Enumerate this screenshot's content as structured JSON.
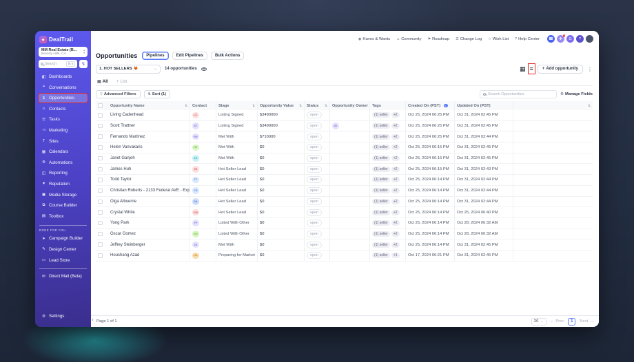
{
  "annotations": {
    "color": "#e02424"
  },
  "topbar": {
    "links": [
      {
        "label": "Haves & Wants",
        "icon": "haves-wants-icon",
        "glyph": "◉"
      },
      {
        "label": "Community",
        "icon": "community-icon",
        "glyph": "☺"
      },
      {
        "label": "Roadmap",
        "icon": "roadmap-icon",
        "glyph": "⚑"
      },
      {
        "label": "Change Log",
        "icon": "change-log-icon",
        "glyph": "☰"
      },
      {
        "label": "Wish List",
        "icon": "wish-list-icon",
        "glyph": "☆"
      },
      {
        "label": "Help Center",
        "icon": "help-center-icon",
        "glyph": "?"
      }
    ],
    "circles": [
      {
        "name": "phone-button",
        "glyph": "☎",
        "bg": "#4a63f2",
        "badge": ""
      },
      {
        "name": "launchpad-button",
        "glyph": "❖",
        "bg": "#9a8bf2",
        "badge": "yes"
      },
      {
        "name": "notifications-bell-button",
        "glyph": "Ω",
        "bg": "#7d6ef0",
        "badge": ""
      },
      {
        "name": "help-button",
        "glyph": "?",
        "bg": "#5a50cc",
        "badge": ""
      },
      {
        "name": "profile-avatar",
        "glyph": "",
        "bg": "#49536a",
        "badge": ""
      }
    ]
  },
  "sidebar": {
    "logo": "DealTrail",
    "logo_glyph": "◆",
    "workspace": {
      "name": "MM Real Estate (B...",
      "location": "Beverly Hills, CA",
      "up_glyph": "▴",
      "down_glyph": "▾"
    },
    "search": {
      "placeholder": "Search",
      "shortcut": "⌘ K",
      "bolt_glyph": "↯"
    },
    "items": [
      {
        "label": "Dashboards",
        "icon": "dashboards-icon",
        "glyph": "◧",
        "active": "",
        "annotated": ""
      },
      {
        "label": "Conversations",
        "icon": "conversations-icon",
        "glyph": "❝",
        "active": "",
        "annotated": ""
      },
      {
        "label": "Opportunities",
        "icon": "opportunities-icon",
        "glyph": "$",
        "active": "yes",
        "annotated": "yes"
      },
      {
        "label": "Contacts",
        "icon": "contacts-icon",
        "glyph": "☺",
        "active": "",
        "annotated": ""
      },
      {
        "label": "Tasks",
        "icon": "tasks-icon",
        "glyph": "☰",
        "active": "",
        "annotated": ""
      },
      {
        "label": "Marketing",
        "icon": "marketing-icon",
        "glyph": "◅",
        "active": "",
        "annotated": ""
      },
      {
        "label": "Sites",
        "icon": "sites-icon",
        "glyph": "T",
        "active": "",
        "annotated": ""
      },
      {
        "label": "Calendars",
        "icon": "calendars-icon",
        "glyph": "▦",
        "active": "",
        "annotated": ""
      },
      {
        "label": "Automations",
        "icon": "automations-icon",
        "glyph": "⚙",
        "active": "",
        "annotated": ""
      },
      {
        "label": "Reporting",
        "icon": "reporting-icon",
        "glyph": "◫",
        "active": "",
        "annotated": ""
      },
      {
        "label": "Reputation",
        "icon": "reputation-icon",
        "glyph": "♥",
        "active": "",
        "annotated": ""
      },
      {
        "label": "Media Storage",
        "icon": "media-storage-icon",
        "glyph": "▣",
        "active": "",
        "annotated": ""
      },
      {
        "label": "Course Builder",
        "icon": "course-builder-icon",
        "glyph": "⧉",
        "active": "",
        "annotated": ""
      },
      {
        "label": "Toolbox",
        "icon": "toolbox-icon",
        "glyph": "▤",
        "active": "",
        "annotated": ""
      }
    ],
    "done_for_you_label": "DONE FOR YOU",
    "dfy_items": [
      {
        "label": "Campaign Builder",
        "icon": "campaign-builder-icon",
        "glyph": "➤"
      },
      {
        "label": "Design Center",
        "icon": "design-center-icon",
        "glyph": "✎"
      },
      {
        "label": "Lead Store",
        "icon": "lead-store-icon",
        "glyph": "▭"
      }
    ],
    "direct_mail": {
      "label": "Direct Mail (Beta)",
      "glyph": "✉"
    },
    "settings": {
      "label": "Settings",
      "glyph": "⚙"
    }
  },
  "header": {
    "title": "Opportunities",
    "tabs": [
      {
        "label": "Pipelines",
        "active": "yes"
      },
      {
        "label": "Edit Pipelines",
        "active": ""
      },
      {
        "label": "Bulk Actions",
        "active": ""
      }
    ]
  },
  "pipeline_bar": {
    "selected": "1. HOT SELLERS",
    "emoji": "🦊",
    "count": "14 opportunities",
    "add_label": "Add opportunity"
  },
  "list_tabs": {
    "all_label": "All",
    "add_list_label": "List"
  },
  "filter_bar": {
    "advanced_label": "Advanced Filters",
    "sort_label": "Sort (1)",
    "search_placeholder": "Search Opportunities",
    "manage_fields_label": "Manage Fields"
  },
  "icons": {
    "sort_glyph": "⇅",
    "sort_asc_glyph": "↑",
    "funnel_glyph": "▽",
    "gear_glyph": "⚙",
    "grid_glyph": "▦",
    "list_glyph": "≡",
    "kebab_glyph": "⋮",
    "plus_glyph": "+",
    "chevron_down_glyph": "⌄",
    "prev_arrow_glyph": "←",
    "next_arrow_glyph": "→",
    "collapse_glyph": "‹"
  },
  "table": {
    "columns": [
      {
        "label": "Opportunity Name"
      },
      {
        "label": "Contact"
      },
      {
        "label": "Stage"
      },
      {
        "label": "Opportunity Value"
      },
      {
        "label": "Status"
      },
      {
        "label": "Opportunity Owner"
      },
      {
        "label": "Tags"
      },
      {
        "label": "Created On (PST)"
      },
      {
        "label": "Updated On (PST)"
      }
    ],
    "rows": [
      {
        "name": "Living Cadenhead",
        "initials": "LC",
        "avatar_bg": "#fbdede",
        "avatar_fg": "#e05c5c",
        "stage": "Listing Signed",
        "value": "$3490000",
        "status": "open",
        "owner": "",
        "tags": [
          "(1) seller",
          "+2"
        ],
        "created": "Oct 25, 2024 06:25 PM",
        "updated": "Oct 31, 2024 02:45 PM"
      },
      {
        "name": "Scott Trattner",
        "initials": "ST",
        "avatar_bg": "#e4e2fb",
        "avatar_fg": "#7c75e8",
        "stage": "Listing Signed",
        "value": "$3499000",
        "status": "open",
        "owner": "JD",
        "tags": [
          "(1) seller",
          "+2"
        ],
        "created": "Oct 25, 2024 06:25 PM",
        "updated": "Oct 31, 2024 02:45 PM"
      },
      {
        "name": "Fernando Martinez",
        "initials": "FM",
        "avatar_bg": "#e4e2fb",
        "avatar_fg": "#7c75e8",
        "stage": "Met With",
        "value": "$710000",
        "status": "open",
        "owner": "",
        "tags": [
          "(1) seller",
          "+2"
        ],
        "created": "Oct 25, 2024 06:25 PM",
        "updated": "Oct 31, 2024 02:44 PM"
      },
      {
        "name": "Helen Vanvakaris",
        "initials": "HV",
        "avatar_bg": "#d9f5c5",
        "avatar_fg": "#6cb93c",
        "stage": "Met With",
        "value": "$0",
        "status": "open",
        "owner": "",
        "tags": [
          "(1) seller",
          "+2"
        ],
        "created": "Oct 25, 2024 06:15 PM",
        "updated": "Oct 31, 2024 02:45 PM"
      },
      {
        "name": "Janet Ganjeh",
        "initials": "JG",
        "avatar_bg": "#c9eff5",
        "avatar_fg": "#2fb3ca",
        "stage": "Met With",
        "value": "$0",
        "status": "open",
        "owner": "",
        "tags": [
          "(1) seller",
          "+2"
        ],
        "created": "Oct 25, 2024 06:15 PM",
        "updated": "Oct 31, 2024 02:45 PM"
      },
      {
        "name": "James Huh",
        "initials": "JH",
        "avatar_bg": "#fbdede",
        "avatar_fg": "#e05c5c",
        "stage": "Hot Seller Lead",
        "value": "$0",
        "status": "open",
        "owner": "",
        "tags": [
          "(1) seller",
          "+2"
        ],
        "created": "Oct 25, 2024 06:15 PM",
        "updated": "Oct 31, 2024 02:43 PM"
      },
      {
        "name": "Todd Taylor",
        "initials": "TT",
        "avatar_bg": "#dbe7fb",
        "avatar_fg": "#5b8ded",
        "stage": "Hot Seller Lead",
        "value": "$0",
        "status": "open",
        "owner": "",
        "tags": [
          "(1) seller",
          "+2"
        ],
        "created": "Oct 25, 2024 06:14 PM",
        "updated": "Oct 31, 2024 02:44 PM"
      },
      {
        "name": "Christian Roberts - 2133 Federal AVE - Expired",
        "initials": "CR",
        "avatar_bg": "#dbe7fb",
        "avatar_fg": "#5b8ded",
        "stage": "Hot Seller Lead",
        "value": "$0",
        "status": "open",
        "owner": "",
        "tags": [
          "(1) seller",
          "+2"
        ],
        "created": "Oct 25, 2024 06:14 PM",
        "updated": "Oct 31, 2024 02:44 PM"
      },
      {
        "name": "Olga Albuerne",
        "initials": "OA",
        "avatar_bg": "#cfdffa",
        "avatar_fg": "#4f7fe0",
        "stage": "Hot Seller Lead",
        "value": "$0",
        "status": "open",
        "owner": "",
        "tags": [
          "(1) seller",
          "+2"
        ],
        "created": "Oct 25, 2024 06:14 PM",
        "updated": "Oct 31, 2024 02:44 PM"
      },
      {
        "name": "Crystal White",
        "initials": "CW",
        "avatar_bg": "#fbdede",
        "avatar_fg": "#e05c5c",
        "stage": "Hot Seller Lead",
        "value": "$0",
        "status": "open",
        "owner": "",
        "tags": [
          "(1) seller",
          "+2"
        ],
        "created": "Oct 25, 2024 06:14 PM",
        "updated": "Oct 25, 2024 06:40 PM"
      },
      {
        "name": "Yong Park",
        "initials": "YP",
        "avatar_bg": "#e4e2fb",
        "avatar_fg": "#7c75e8",
        "stage": "Listed With Other",
        "value": "$0",
        "status": "open",
        "owner": "",
        "tags": [
          "(1) seller",
          "+2"
        ],
        "created": "Oct 25, 2024 06:14 PM",
        "updated": "Oct 28, 2024 06:32 AM"
      },
      {
        "name": "Oscar Gomez",
        "initials": "OG",
        "avatar_bg": "#d9f5c5",
        "avatar_fg": "#6cb93c",
        "stage": "Listed With Other",
        "value": "$0",
        "status": "open",
        "owner": "",
        "tags": [
          "(1) seller",
          "+2"
        ],
        "created": "Oct 25, 2024 06:14 PM",
        "updated": "Oct 28, 2024 06:32 AM"
      },
      {
        "name": "Jeffrey Steinberger",
        "initials": "JS",
        "avatar_bg": "#e4e2fb",
        "avatar_fg": "#7c75e8",
        "stage": "Met With",
        "value": "$0",
        "status": "open",
        "owner": "",
        "tags": [
          "(1) seller",
          "+2"
        ],
        "created": "Oct 25, 2024 06:14 PM",
        "updated": "Oct 31, 2024 02:45 PM"
      },
      {
        "name": "Houshang Azad",
        "initials": "HA",
        "avatar_bg": "#f7ddae",
        "avatar_fg": "#cf8f38",
        "stage": "Preparing for Market",
        "value": "$0",
        "status": "open",
        "owner": "",
        "tags": [
          "(1) seller",
          "+1"
        ],
        "created": "Oct 17, 2024 06:21 PM",
        "updated": "Oct 31, 2024 02:45 PM"
      }
    ]
  },
  "pagination": {
    "summary": "Page 1 of 1",
    "size": "20",
    "prev_label": "Prev",
    "current_page": "1",
    "next_label": "Next"
  }
}
